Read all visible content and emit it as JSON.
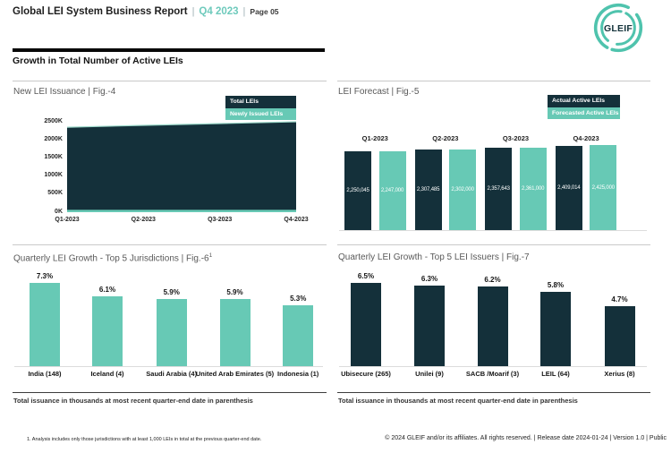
{
  "header": {
    "title": "Global LEI System Business Report",
    "separator": "|",
    "period": "Q4 2023",
    "page": "Page 05",
    "logo_text": "GLEIF"
  },
  "section_title": "Growth in Total Number of Active LEIs",
  "colors": {
    "dark": "#14303a",
    "teal": "#67c9b5",
    "teal_edge": "#9edacb",
    "logo_ring": "#4fc3ad",
    "accent_text": "#6ecabc"
  },
  "footnote": "1. Analysis includes only those jurisdictions with at least 1,000 LEIs in total at the previous quarter-end date.",
  "copyright": "© 2024 GLEIF and/or its affiliates. All rights reserved.  | Release date 2024-01-24 | Version 1.0 | Public",
  "chart_data": [
    {
      "id": "fig4",
      "type": "area",
      "title": "New LEI Issuance | Fig.-4",
      "legend_position": "top-right",
      "legend": [
        {
          "label": "Total LEIs",
          "color": "#14303a"
        },
        {
          "label": "Newly Issued LEIs",
          "color": "#67c9b5"
        }
      ],
      "x": [
        "Q1-2023",
        "Q2-2023",
        "Q3-2023",
        "Q4-2023"
      ],
      "series": [
        {
          "name": "Total LEIs",
          "values": [
            2350,
            2400,
            2450,
            2500
          ],
          "unit": "K"
        },
        {
          "name": "Newly Issued LEIs",
          "values": [
            65,
            65,
            65,
            65
          ],
          "unit": "K"
        }
      ],
      "ylim": [
        0,
        2500
      ],
      "yticks": [
        "2500K",
        "2000K",
        "1500K",
        "1000K",
        "500K",
        "0K"
      ],
      "grid": false,
      "xlabel": "",
      "ylabel": ""
    },
    {
      "id": "fig5",
      "type": "bar",
      "title": "LEI Forecast | Fig.-5",
      "legend_position": "top-right",
      "legend": [
        {
          "label": "Actual Active LEIs",
          "color": "#14303a"
        },
        {
          "label": "Forecasted Active LEIs",
          "color": "#67c9b5"
        }
      ],
      "categories": [
        "Q1-2023",
        "Q2-2023",
        "Q3-2023",
        "Q4-2023"
      ],
      "series": [
        {
          "name": "Actual Active LEIs",
          "values": [
            2250045,
            2307485,
            2357643,
            2409014
          ],
          "labels": [
            "2,250,045",
            "2,307,485",
            "2,357,643",
            "2,409,014"
          ]
        },
        {
          "name": "Forecasted Active LEIs",
          "values": [
            2247000,
            2302000,
            2361000,
            2425000
          ],
          "labels": [
            "2,247,000",
            "2,302,000",
            "2,361,000",
            "2,425,000"
          ]
        }
      ],
      "ylim": [
        0,
        2500000
      ],
      "grid": false,
      "xlabel": "",
      "ylabel": ""
    },
    {
      "id": "fig6",
      "type": "bar",
      "title": "Quarterly LEI Growth - Top 5 Jurisdictions | Fig.-6",
      "title_sup": "1",
      "categories": [
        "India (148)",
        "Iceland (4)",
        "Saudi Arabia (4)",
        "United Arab Emirates (5)",
        "Indonesia (1)"
      ],
      "values": [
        7.3,
        6.1,
        5.9,
        5.9,
        5.3
      ],
      "labels": [
        "7.3%",
        "6.1%",
        "5.9%",
        "5.9%",
        "5.3%"
      ],
      "bar_color": "#67c9b5",
      "note": "Total issuance in thousands at most recent quarter-end date in parenthesis",
      "grid": false
    },
    {
      "id": "fig7",
      "type": "bar",
      "title": "Quarterly LEI Growth - Top 5 LEI Issuers | Fig.-7",
      "categories": [
        "Ubisecure (265)",
        "Unilei (9)",
        "SACB /Moarif (3)",
        "LEIL (64)",
        "Xerius (8)"
      ],
      "values": [
        6.5,
        6.3,
        6.2,
        5.8,
        4.7
      ],
      "labels": [
        "6.5%",
        "6.3%",
        "6.2%",
        "5.8%",
        "4.7%"
      ],
      "bar_color": "#14303a",
      "note": "Total issuance in thousands at most recent quarter-end date in parenthesis",
      "grid": false
    }
  ]
}
